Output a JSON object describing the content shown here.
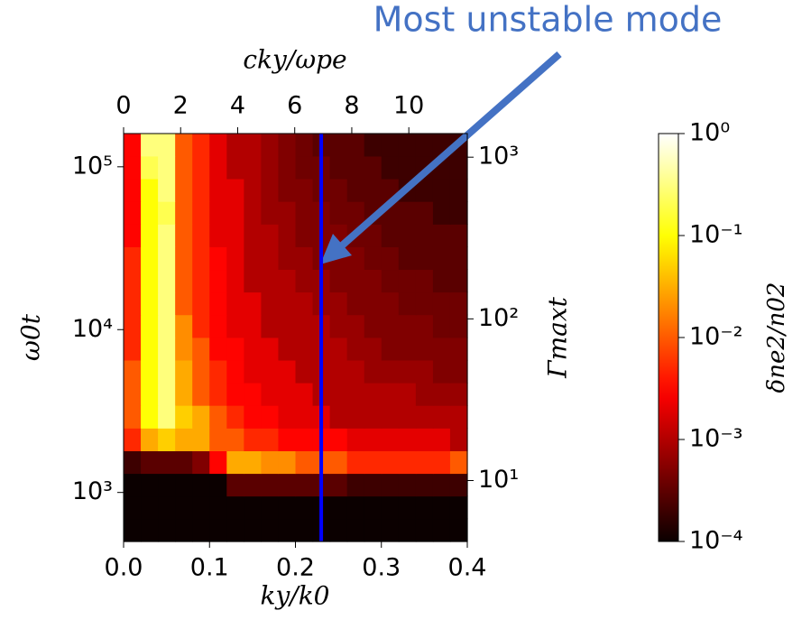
{
  "chart_data": {
    "type": "heatmap",
    "annotation": "Most unstable mode",
    "xlabel": "ky/k0",
    "x2label": "cky/ωpe",
    "ylabel": "ω0t",
    "y2label": "Γmaxt",
    "xlim": [
      0,
      0.4
    ],
    "xticks": [
      {
        "value": 0,
        "label": "0.0"
      },
      0.1,
      0.2,
      0.3,
      0.4
    ],
    "x2lim": [
      0,
      12.05
    ],
    "x2ticks": [
      0,
      2,
      4,
      6,
      8,
      10
    ],
    "ylim": [
      500,
      160000
    ],
    "ylog": true,
    "yticks": [
      {
        "value": 1000,
        "label": "10³"
      },
      {
        "value": 10000,
        "label": "10⁴"
      },
      {
        "value": 100000,
        "label": "10⁵"
      }
    ],
    "y2lim": [
      4.2,
      1400
    ],
    "y2log": true,
    "y2ticks": [
      {
        "value": 10,
        "label": "10¹"
      },
      {
        "value": 100,
        "label": "10²"
      },
      {
        "value": 1000,
        "label": "10³"
      }
    ],
    "highlight_x": 0.23,
    "highlight_color": "#0000ff",
    "colormap": "hot",
    "colorbar": {
      "label": "δne2/n02",
      "lim": [
        0.0001,
        1
      ],
      "log": true,
      "ticks": [
        {
          "value": 1,
          "label": "10⁰"
        },
        {
          "value": 0.1,
          "label": "10⁻¹"
        },
        {
          "value": 0.01,
          "label": "10⁻²"
        },
        {
          "value": 0.001,
          "label": "10⁻³"
        },
        {
          "value": 0.0001,
          "label": "10⁻⁴"
        }
      ]
    },
    "x": [
      0.01,
      0.03,
      0.05,
      0.07,
      0.09,
      0.11,
      0.13,
      0.15,
      0.17,
      0.19,
      0.21,
      0.23,
      0.25,
      0.27,
      0.29,
      0.31,
      0.33,
      0.35,
      0.37,
      0.39
    ],
    "y": [
      589,
      811,
      1117,
      1538,
      2118,
      2924,
      4027,
      5546,
      7638,
      10520,
      14520,
      20000,
      27540,
      37930,
      52240,
      72110,
      99310,
      136800
    ],
    "z": [
      [
        0.0001,
        0.0001,
        0.0001,
        0.0001,
        0.0001,
        0.0001,
        0.0001,
        0.0001,
        0.0001,
        0.0001,
        0.0001,
        0.0001,
        0.0001,
        0.0001,
        0.0001,
        0.0001,
        0.0001,
        0.0001,
        0.0001,
        0.0001
      ],
      [
        0.0001,
        0.0001,
        0.0001,
        0.0001,
        0.0001,
        0.0001,
        0.0001,
        0.0001,
        0.0001,
        0.0001,
        0.0001,
        0.0001,
        0.0001,
        0.0001,
        0.0001,
        0.0001,
        0.0001,
        0.0001,
        0.0001,
        0.0001
      ],
      [
        0.0001,
        0.0001,
        0.0001,
        0.0001,
        0.0001,
        0.0001,
        0.0003,
        0.0003,
        0.0003,
        0.0003,
        0.0003,
        0.0003,
        0.0003,
        0.0002,
        0.0002,
        0.0002,
        0.0002,
        0.0002,
        0.0002,
        0.0002
      ],
      [
        0.0002,
        0.0003,
        0.0003,
        0.0003,
        0.0005,
        0.003,
        0.03,
        0.03,
        0.02,
        0.02,
        0.01,
        0.01,
        0.01,
        0.005,
        0.005,
        0.005,
        0.005,
        0.005,
        0.005,
        0.01
      ],
      [
        0.005,
        0.03,
        0.05,
        0.03,
        0.03,
        0.01,
        0.01,
        0.005,
        0.005,
        0.003,
        0.003,
        0.003,
        0.003,
        0.002,
        0.002,
        0.002,
        0.002,
        0.002,
        0.002,
        0.001
      ],
      [
        0.01,
        0.1,
        0.3,
        0.05,
        0.03,
        0.01,
        0.005,
        0.003,
        0.003,
        0.002,
        0.002,
        0.002,
        0.001,
        0.001,
        0.001,
        0.001,
        0.001,
        0.001,
        0.001,
        0.001
      ],
      [
        0.01,
        0.1,
        0.3,
        0.03,
        0.01,
        0.005,
        0.003,
        0.003,
        0.002,
        0.002,
        0.002,
        0.001,
        0.001,
        0.001,
        0.001,
        0.001,
        0.001,
        0.0007,
        0.0007,
        0.0007
      ],
      [
        0.01,
        0.1,
        0.3,
        0.03,
        0.01,
        0.005,
        0.003,
        0.002,
        0.002,
        0.002,
        0.001,
        0.001,
        0.001,
        0.001,
        0.0007,
        0.0007,
        0.0007,
        0.0007,
        0.0005,
        0.0005
      ],
      [
        0.005,
        0.1,
        0.3,
        0.02,
        0.01,
        0.003,
        0.003,
        0.002,
        0.002,
        0.001,
        0.001,
        0.001,
        0.001,
        0.0007,
        0.0007,
        0.0005,
        0.0005,
        0.0005,
        0.0005,
        0.0005
      ],
      [
        0.005,
        0.1,
        0.3,
        0.02,
        0.005,
        0.003,
        0.002,
        0.002,
        0.001,
        0.001,
        0.001,
        0.001,
        0.0007,
        0.0007,
        0.0005,
        0.0005,
        0.0005,
        0.0005,
        0.0004,
        0.0004
      ],
      [
        0.005,
        0.1,
        0.3,
        0.01,
        0.005,
        0.003,
        0.002,
        0.002,
        0.001,
        0.001,
        0.001,
        0.0007,
        0.0007,
        0.0005,
        0.0005,
        0.0005,
        0.0004,
        0.0004,
        0.0004,
        0.0004
      ],
      [
        0.005,
        0.1,
        0.3,
        0.01,
        0.005,
        0.003,
        0.002,
        0.001,
        0.001,
        0.001,
        0.0007,
        0.0007,
        0.0005,
        0.0005,
        0.0005,
        0.0004,
        0.0004,
        0.0004,
        0.0003,
        0.0003
      ],
      [
        0.005,
        0.1,
        0.3,
        0.01,
        0.005,
        0.003,
        0.002,
        0.001,
        0.001,
        0.0007,
        0.0007,
        0.0005,
        0.0005,
        0.0005,
        0.0004,
        0.0004,
        0.0003,
        0.0003,
        0.0003,
        0.0003
      ],
      [
        0.003,
        0.1,
        0.3,
        0.01,
        0.005,
        0.002,
        0.002,
        0.001,
        0.001,
        0.0007,
        0.0005,
        0.0005,
        0.0005,
        0.0004,
        0.0004,
        0.0003,
        0.0003,
        0.0003,
        0.0003,
        0.0003
      ],
      [
        0.003,
        0.1,
        0.2,
        0.01,
        0.005,
        0.002,
        0.002,
        0.001,
        0.0007,
        0.0007,
        0.0005,
        0.0005,
        0.0004,
        0.0004,
        0.0003,
        0.0003,
        0.0003,
        0.0003,
        0.0002,
        0.0002
      ],
      [
        0.003,
        0.1,
        0.3,
        0.01,
        0.005,
        0.002,
        0.002,
        0.001,
        0.0007,
        0.0005,
        0.0005,
        0.0004,
        0.0004,
        0.0003,
        0.0003,
        0.0003,
        0.0002,
        0.0002,
        0.0002,
        0.0002
      ],
      [
        0.003,
        0.2,
        0.3,
        0.01,
        0.005,
        0.002,
        0.001,
        0.001,
        0.0007,
        0.0005,
        0.0004,
        0.0004,
        0.0003,
        0.0003,
        0.0003,
        0.0002,
        0.0002,
        0.0002,
        0.0002,
        0.0002
      ],
      [
        0.003,
        0.3,
        0.3,
        0.01,
        0.005,
        0.002,
        0.001,
        0.001,
        0.0007,
        0.0005,
        0.0004,
        0.0003,
        0.0003,
        0.0003,
        0.0002,
        0.0002,
        0.0002,
        0.0002,
        0.0002,
        0.0002
      ]
    ]
  }
}
